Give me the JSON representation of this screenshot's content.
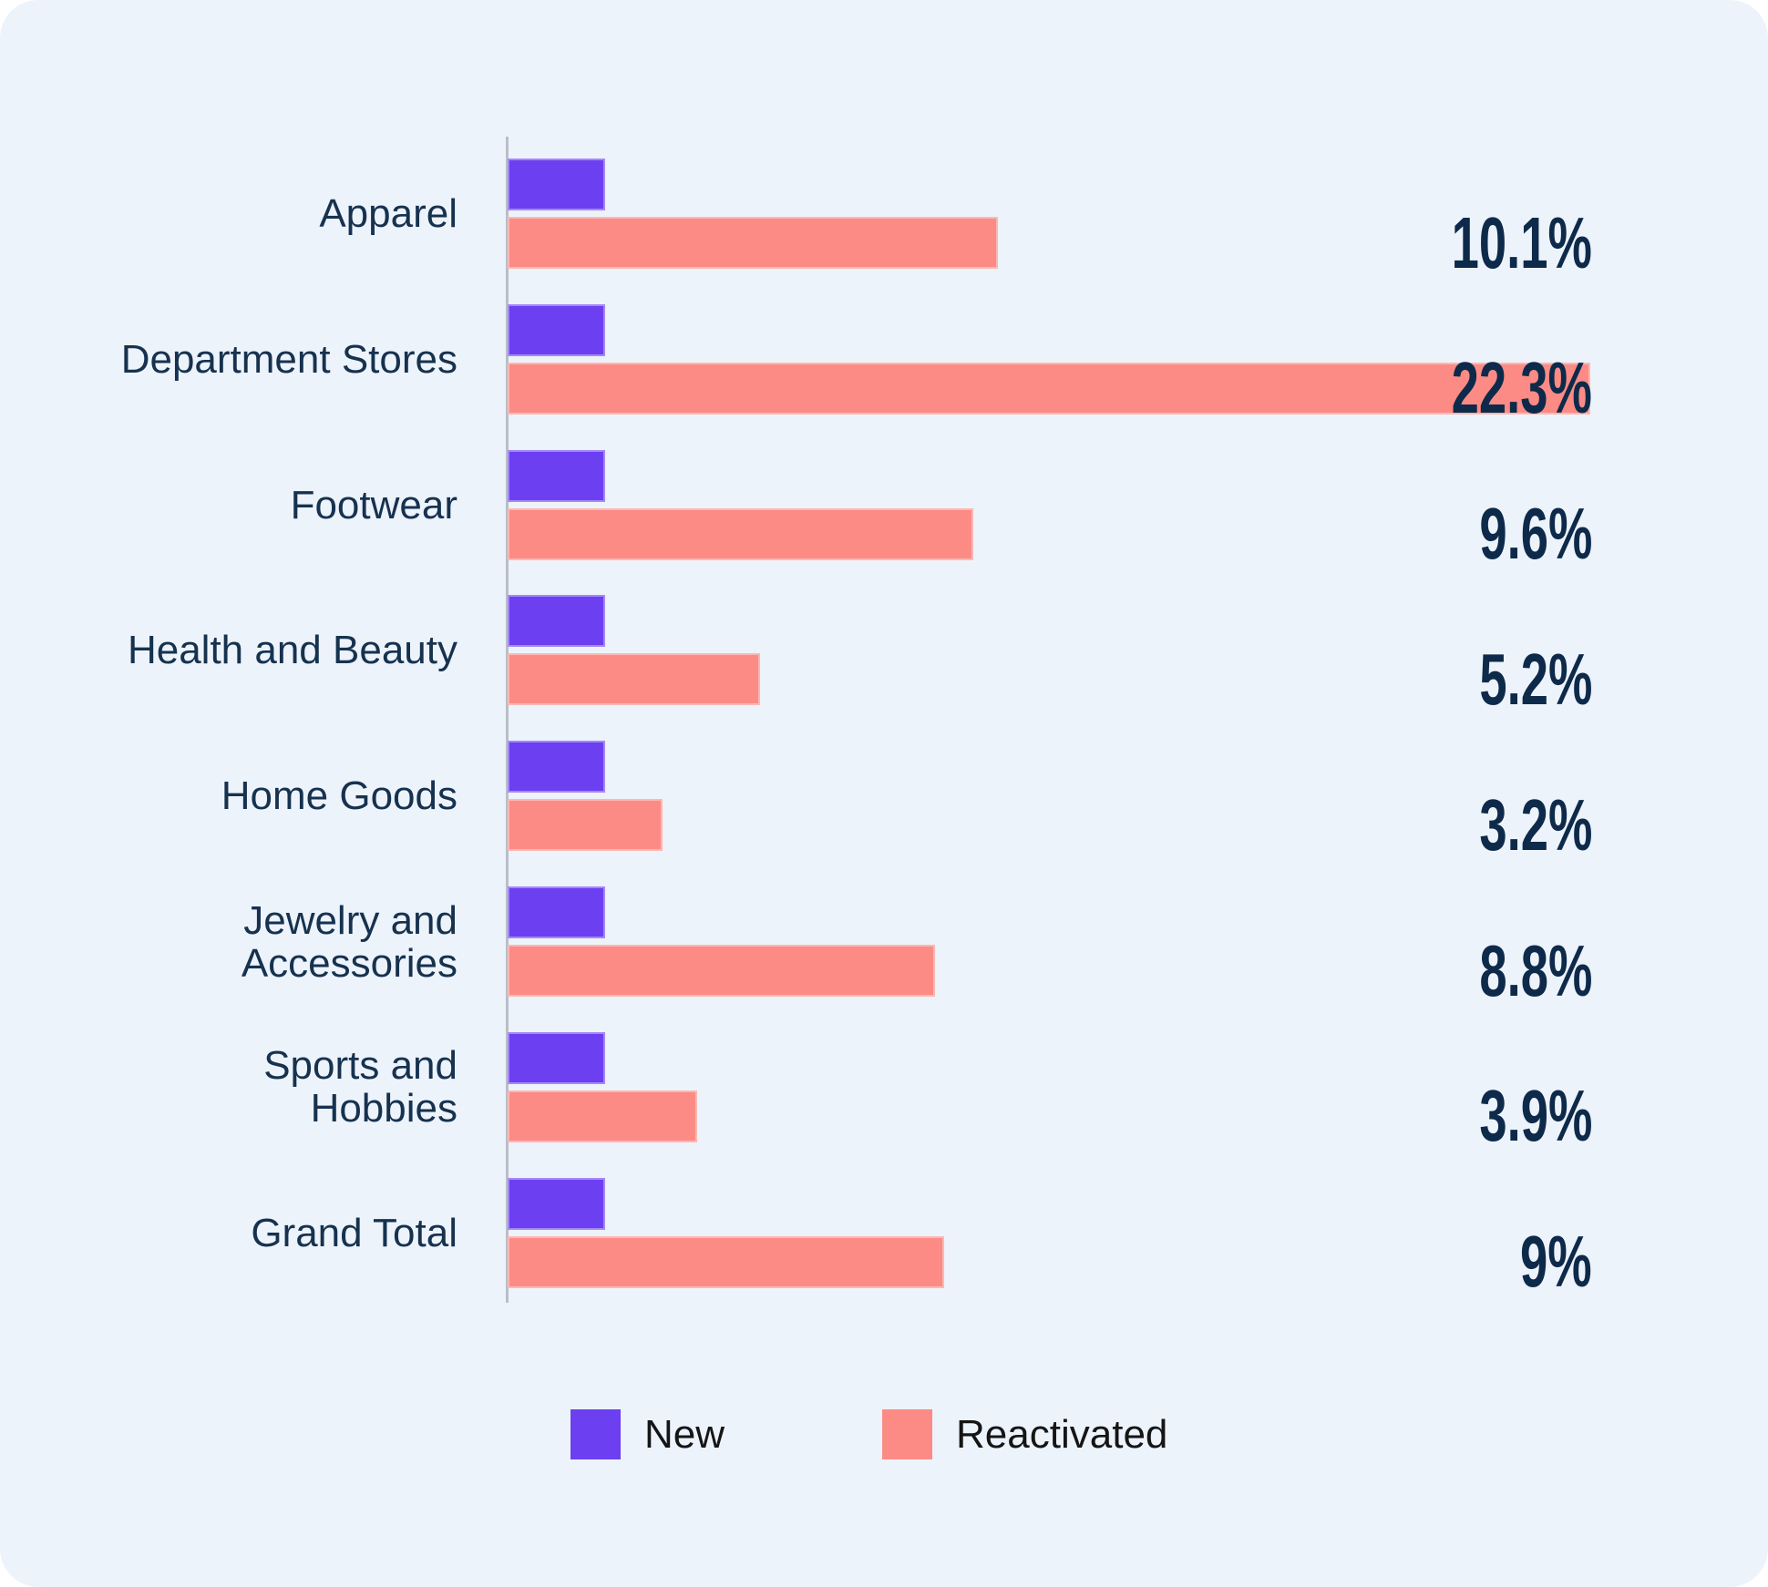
{
  "page": {
    "background": "#FFFFFF",
    "card_background": "#EDF3FB"
  },
  "chart_data": {
    "type": "bar",
    "orientation": "horizontal",
    "title": "",
    "xlabel": "",
    "ylabel": "",
    "categories": [
      "Apparel",
      "Department Stores",
      "Footwear",
      "Health and Beauty",
      "Home Goods",
      "Jewelry and Accessories",
      "Sports and Hobbies",
      "Grand Total"
    ],
    "categories_display": [
      "Apparel",
      "Department Stores",
      "Footwear",
      "Health and Beauty",
      "Home Goods",
      "Jewelry and\nAccessories",
      "Sports and\nHobbies",
      "Grand Total"
    ],
    "series": [
      {
        "name": "New",
        "color": "#6C3FF1",
        "values": [
          2,
          2,
          2,
          2,
          2,
          2,
          2,
          2
        ]
      },
      {
        "name": "Reactivated",
        "color": "#FC8B85",
        "values": [
          10.1,
          22.3,
          9.6,
          5.2,
          3.2,
          8.8,
          3.9,
          9
        ]
      }
    ],
    "value_labels": {
      "series": "Reactivated",
      "labels": [
        "10.1%",
        "22.3%",
        "9.6%",
        "5.2%",
        "3.2%",
        "8.8%",
        "3.9%",
        "9%"
      ]
    },
    "xlim": [
      0,
      22.3
    ],
    "grid": false,
    "legend_position": "bottom",
    "colors": {
      "axis": "#B9BFC9",
      "category_text": "#16324F",
      "value_text": "#0E2A4A",
      "legend_text": "#151515"
    }
  },
  "legend": {
    "items": [
      {
        "label": "New",
        "color": "#6C3FF1"
      },
      {
        "label": "Reactivated",
        "color": "#FC8B85"
      }
    ]
  }
}
